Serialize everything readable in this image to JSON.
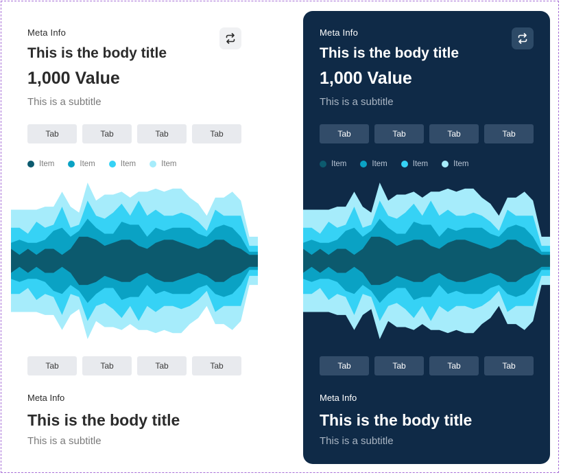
{
  "light": {
    "meta": "Meta Info",
    "body_title": "This is the body title",
    "value": "1,000 Value",
    "subtitle": "This is a subtitle",
    "top_tabs": [
      "Tab",
      "Tab",
      "Tab",
      "Tab"
    ],
    "bottom_tabs": [
      "Tab",
      "Tab",
      "Tab",
      "Tab"
    ],
    "legend": [
      "Item",
      "Item",
      "Item",
      "Item"
    ],
    "footer": {
      "meta": "Meta Info",
      "body_title": "This is the body title",
      "subtitle": "This is a subtitle"
    }
  },
  "dark": {
    "meta": "Meta Info",
    "body_title": "This is the body title",
    "value": "1,000 Value",
    "subtitle": "This is a subtitle",
    "top_tabs": [
      "Tab",
      "Tab",
      "Tab",
      "Tab"
    ],
    "bottom_tabs": [
      "Tab",
      "Tab",
      "Tab",
      "Tab"
    ],
    "legend": [
      "Item",
      "Item",
      "Item",
      "Item"
    ],
    "footer": {
      "meta": "Meta Info",
      "body_title": "This is the body title",
      "subtitle": "This is a subtitle"
    }
  },
  "icons": {
    "swap": "swap-arrows-icon"
  },
  "colors": {
    "series": [
      "#0c5a6e",
      "#0aa2c4",
      "#36d2f5",
      "#a6ecfb"
    ],
    "dark_bg": "#0f2a47"
  },
  "chart_data": {
    "type": "area",
    "stacking": "stream",
    "x": [
      0,
      1,
      2,
      3,
      4,
      5,
      6,
      7,
      8,
      9,
      10,
      11,
      12,
      13,
      14,
      15,
      16,
      17,
      18,
      19,
      20,
      21,
      22,
      23,
      24,
      25,
      26,
      27,
      28,
      29
    ],
    "series": [
      {
        "values": [
          40,
          20,
          40,
          20,
          40,
          40,
          20,
          40,
          80,
          80,
          70,
          50,
          60,
          70,
          70,
          50,
          40,
          60,
          70,
          70,
          60,
          50,
          40,
          50,
          70,
          70,
          50,
          40,
          20,
          20
        ]
      },
      {
        "values": [
          20,
          50,
          20,
          40,
          30,
          60,
          90,
          40,
          20,
          60,
          40,
          40,
          30,
          60,
          50,
          70,
          40,
          50,
          30,
          40,
          50,
          60,
          50,
          30,
          40,
          50,
          60,
          40,
          10,
          10
        ]
      },
      {
        "values": [
          50,
          40,
          30,
          70,
          40,
          20,
          70,
          30,
          20,
          60,
          40,
          50,
          70,
          60,
          30,
          80,
          70,
          60,
          50,
          40,
          50,
          40,
          40,
          20,
          60,
          30,
          40,
          70,
          20,
          20
        ]
      },
      {
        "values": [
          60,
          60,
          80,
          40,
          70,
          60,
          50,
          70,
          40,
          60,
          50,
          80,
          60,
          40,
          60,
          30,
          80,
          70,
          80,
          90,
          80,
          60,
          60,
          50,
          40,
          60,
          80,
          50,
          30,
          30
        ]
      }
    ]
  }
}
